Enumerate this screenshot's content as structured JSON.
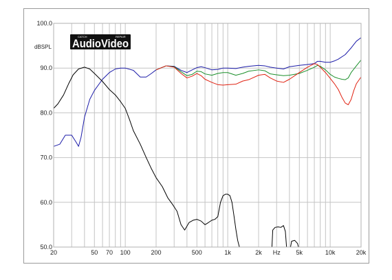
{
  "chart_data": {
    "type": "line",
    "title": "",
    "xlabel": "Hz",
    "ylabel": "dBSPL",
    "x_scale": "log",
    "xlim": [
      20,
      20000
    ],
    "ylim": [
      50,
      100
    ],
    "grid": true,
    "legend": "none",
    "x_ticks": [
      {
        "value": 20,
        "label": "20"
      },
      {
        "value": 50,
        "label": "50"
      },
      {
        "value": 70,
        "label": "70"
      },
      {
        "value": 100,
        "label": "100"
      },
      {
        "value": 200,
        "label": "200"
      },
      {
        "value": 500,
        "label": "500"
      },
      {
        "value": 1000,
        "label": "1k"
      },
      {
        "value": 2000,
        "label": "2k"
      },
      {
        "value": 5000,
        "label": "5k"
      },
      {
        "value": 10000,
        "label": "10k"
      },
      {
        "value": 20000,
        "label": "20k"
      }
    ],
    "y_ticks": [
      {
        "value": 50,
        "label": "50.0"
      },
      {
        "value": 60,
        "label": "60.0"
      },
      {
        "value": 70,
        "label": "70.0"
      },
      {
        "value": 80,
        "label": "80.0"
      },
      {
        "value": 90,
        "label": "90.0"
      },
      {
        "value": 100,
        "label": "100.0"
      }
    ],
    "series": [
      {
        "color": "#1a1aa8",
        "points": [
          [
            20,
            72.5
          ],
          [
            23,
            73
          ],
          [
            26,
            75
          ],
          [
            30,
            75
          ],
          [
            33,
            73.5
          ],
          [
            35,
            72.5
          ],
          [
            37,
            74.5
          ],
          [
            40,
            79
          ],
          [
            45,
            83
          ],
          [
            50,
            85
          ],
          [
            60,
            87.5
          ],
          [
            70,
            89
          ],
          [
            80,
            89.8
          ],
          [
            90,
            90
          ],
          [
            100,
            90
          ],
          [
            120,
            89.5
          ],
          [
            140,
            88
          ],
          [
            160,
            88
          ],
          [
            180,
            88.8
          ],
          [
            200,
            89.6
          ],
          [
            250,
            90.5
          ],
          [
            300,
            90.4
          ],
          [
            350,
            89.5
          ],
          [
            400,
            89
          ],
          [
            450,
            89.6
          ],
          [
            500,
            90.1
          ],
          [
            550,
            90.3
          ],
          [
            600,
            90.1
          ],
          [
            700,
            89.6
          ],
          [
            800,
            89.7
          ],
          [
            900,
            90
          ],
          [
            1000,
            90
          ],
          [
            1200,
            89.9
          ],
          [
            1400,
            90.2
          ],
          [
            1600,
            90.4
          ],
          [
            2000,
            90.6
          ],
          [
            2300,
            90.5
          ],
          [
            2600,
            90.2
          ],
          [
            3000,
            90
          ],
          [
            3500,
            89.8
          ],
          [
            4000,
            90.3
          ],
          [
            5000,
            90.6
          ],
          [
            6000,
            90.8
          ],
          [
            7000,
            91
          ],
          [
            7500,
            91.5
          ],
          [
            8000,
            91.5
          ],
          [
            9000,
            91.3
          ],
          [
            10000,
            91.3
          ],
          [
            11000,
            91.6
          ],
          [
            12000,
            92
          ],
          [
            14000,
            93
          ],
          [
            16000,
            94.5
          ],
          [
            18000,
            96
          ],
          [
            20000,
            96.8
          ]
        ]
      },
      {
        "color": "#1a8f2a",
        "points": [
          [
            200,
            89.6
          ],
          [
            250,
            90.5
          ],
          [
            300,
            90.3
          ],
          [
            350,
            89.2
          ],
          [
            400,
            88.3
          ],
          [
            450,
            88.6
          ],
          [
            500,
            89.3
          ],
          [
            550,
            89.2
          ],
          [
            600,
            88.7
          ],
          [
            700,
            88.4
          ],
          [
            800,
            88.8
          ],
          [
            900,
            89
          ],
          [
            1000,
            89
          ],
          [
            1200,
            88.4
          ],
          [
            1400,
            88.8
          ],
          [
            1600,
            89.3
          ],
          [
            2000,
            89.6
          ],
          [
            2300,
            89.4
          ],
          [
            2600,
            88.7
          ],
          [
            3000,
            88.5
          ],
          [
            3500,
            88.3
          ],
          [
            4000,
            88.4
          ],
          [
            5000,
            88.8
          ],
          [
            6000,
            89.5
          ],
          [
            7000,
            90.2
          ],
          [
            7500,
            90.6
          ],
          [
            8000,
            90.4
          ],
          [
            9000,
            89.6
          ],
          [
            10000,
            88.6
          ],
          [
            11000,
            88
          ],
          [
            12000,
            87.7
          ],
          [
            13000,
            87.5
          ],
          [
            14000,
            87.4
          ],
          [
            15000,
            87.8
          ],
          [
            16000,
            89
          ],
          [
            18000,
            90.5
          ],
          [
            20000,
            91.8
          ]
        ]
      },
      {
        "color": "#e02010",
        "points": [
          [
            200,
            89.6
          ],
          [
            250,
            90.5
          ],
          [
            300,
            90.2
          ],
          [
            350,
            88.8
          ],
          [
            400,
            87.8
          ],
          [
            450,
            88.2
          ],
          [
            500,
            88.8
          ],
          [
            550,
            88.3
          ],
          [
            600,
            87.5
          ],
          [
            700,
            86.8
          ],
          [
            800,
            86.3
          ],
          [
            900,
            86.2
          ],
          [
            1000,
            86.3
          ],
          [
            1200,
            86.4
          ],
          [
            1400,
            87.1
          ],
          [
            1600,
            87.4
          ],
          [
            2000,
            88.4
          ],
          [
            2300,
            88.6
          ],
          [
            2600,
            87.8
          ],
          [
            3000,
            87.1
          ],
          [
            3500,
            86.8
          ],
          [
            4000,
            87.5
          ],
          [
            5000,
            89
          ],
          [
            6000,
            90.2
          ],
          [
            7000,
            91
          ],
          [
            7500,
            90.8
          ],
          [
            8000,
            90.2
          ],
          [
            9000,
            89
          ],
          [
            10000,
            87.7
          ],
          [
            11000,
            86.5
          ],
          [
            12000,
            85.2
          ],
          [
            13000,
            83.5
          ],
          [
            14000,
            82.2
          ],
          [
            15000,
            81.8
          ],
          [
            16000,
            83
          ],
          [
            17000,
            85
          ],
          [
            18000,
            86.5
          ],
          [
            20000,
            88
          ]
        ]
      },
      {
        "color": "#000000",
        "points": [
          [
            20,
            81
          ],
          [
            22,
            82
          ],
          [
            25,
            84
          ],
          [
            28,
            86.5
          ],
          [
            31,
            88.5
          ],
          [
            35,
            89.8
          ],
          [
            40,
            90.2
          ],
          [
            45,
            89.8
          ],
          [
            50,
            88.8
          ],
          [
            60,
            87
          ],
          [
            70,
            85.2
          ],
          [
            80,
            84
          ],
          [
            90,
            82.5
          ],
          [
            100,
            81
          ],
          [
            110,
            78.5
          ],
          [
            120,
            76
          ],
          [
            140,
            73
          ],
          [
            160,
            70
          ],
          [
            180,
            67.5
          ],
          [
            200,
            65.5
          ],
          [
            230,
            63.5
          ],
          [
            260,
            61
          ],
          [
            290,
            59.5
          ],
          [
            320,
            58
          ],
          [
            350,
            55
          ],
          [
            380,
            53.8
          ],
          [
            420,
            55.5
          ],
          [
            460,
            56
          ],
          [
            500,
            56.2
          ],
          [
            550,
            55.8
          ],
          [
            600,
            55
          ],
          [
            650,
            55.5
          ],
          [
            700,
            56
          ],
          [
            750,
            56.2
          ],
          [
            800,
            56.8
          ],
          [
            850,
            60
          ],
          [
            900,
            61.5
          ],
          [
            950,
            61.8
          ],
          [
            1000,
            61.8
          ],
          [
            1050,
            61.5
          ],
          [
            1100,
            60
          ],
          [
            1150,
            57
          ],
          [
            1200,
            54
          ],
          [
            1250,
            51.5
          ],
          [
            1300,
            50
          ]
        ]
      },
      {
        "color": "#000000",
        "points": [
          [
            2700,
            50
          ],
          [
            2750,
            53.8
          ],
          [
            2900,
            54.4
          ],
          [
            3100,
            54.5
          ],
          [
            3300,
            54.4
          ],
          [
            3500,
            54.8
          ],
          [
            3650,
            53.5
          ],
          [
            3750,
            50
          ]
        ]
      },
      {
        "color": "#000000",
        "points": [
          [
            4100,
            50
          ],
          [
            4200,
            51.3
          ],
          [
            4500,
            51.5
          ],
          [
            4800,
            50.8
          ],
          [
            4900,
            50
          ]
        ]
      }
    ]
  },
  "logo": {
    "main": "AudioVideo",
    "small_left": "CATCH",
    "small_right": "REPAIR"
  }
}
